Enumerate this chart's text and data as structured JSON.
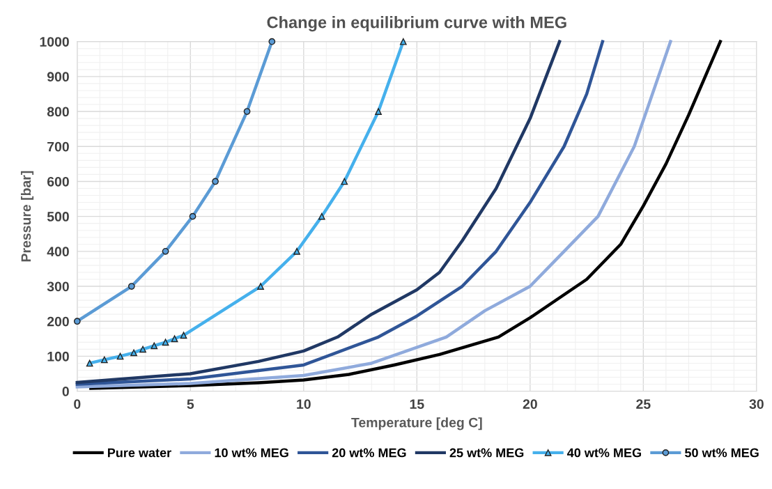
{
  "chart_data": {
    "type": "line",
    "title": "Change in equilibrium curve with MEG",
    "xlabel": "Temperature [deg C]",
    "ylabel": "Pressure [bar]",
    "xlim": [
      0,
      30
    ],
    "xticks": [
      0,
      5,
      10,
      15,
      20,
      25,
      30
    ],
    "ylim": [
      0,
      1000
    ],
    "yticks": [
      0,
      100,
      200,
      300,
      400,
      500,
      600,
      700,
      800,
      900,
      1000
    ],
    "grid": true,
    "legend": "bottom",
    "marker": "none",
    "line_style": "solid",
    "series": [
      {
        "name": "Pure water",
        "color": "#000000",
        "x": [
          0.6,
          5,
          8,
          10,
          12,
          14,
          16,
          18.6,
          20,
          22.5,
          24,
          25,
          26,
          27,
          28.4
        ],
        "values": [
          8,
          16,
          24,
          32,
          48,
          75,
          105,
          155,
          210,
          320,
          420,
          530,
          650,
          790,
          1000
        ]
      },
      {
        "name": "10 wt% MEG",
        "color": "#8faadc",
        "x": [
          0,
          5,
          10,
          13,
          16.3,
          18,
          20,
          21.5,
          23,
          24.6,
          25.4,
          26.2
        ],
        "values": [
          12,
          22,
          45,
          80,
          155,
          230,
          300,
          400,
          500,
          700,
          850,
          1000
        ]
      },
      {
        "name": "20 wt% MEG",
        "color": "#2f5597",
        "x": [
          0,
          5,
          10,
          13.3,
          15,
          17,
          18.5,
          20,
          21.5,
          22.5,
          23.2
        ],
        "values": [
          20,
          35,
          75,
          155,
          215,
          300,
          400,
          540,
          700,
          850,
          1000
        ]
      },
      {
        "name": "25 wt% MEG",
        "color": "#203864",
        "x": [
          0,
          5,
          8,
          10,
          11.5,
          13,
          15,
          16,
          17,
          18.5,
          20,
          21.3
        ],
        "values": [
          25,
          50,
          85,
          115,
          155,
          220,
          290,
          340,
          430,
          580,
          780,
          1000
        ]
      },
      {
        "name": "40 wt% MEG",
        "color": "#45b0ec",
        "marker": "triangle",
        "x": [
          0.55,
          1.2,
          1.9,
          2.5,
          2.9,
          3.4,
          3.9,
          4.3,
          4.7,
          8.1,
          9.7,
          10.8,
          11.8,
          13.3,
          14.4
        ],
        "values": [
          80,
          90,
          100,
          110,
          120,
          130,
          140,
          150,
          160,
          300,
          400,
          500,
          600,
          800,
          1000
        ]
      },
      {
        "name": "50 wt% MEG",
        "color": "#5b9bd5",
        "marker": "circle",
        "x": [
          0,
          2.4,
          3.9,
          5.1,
          6.1,
          7.5,
          8.6
        ],
        "values": [
          200,
          300,
          400,
          500,
          600,
          800,
          1000
        ]
      }
    ]
  }
}
